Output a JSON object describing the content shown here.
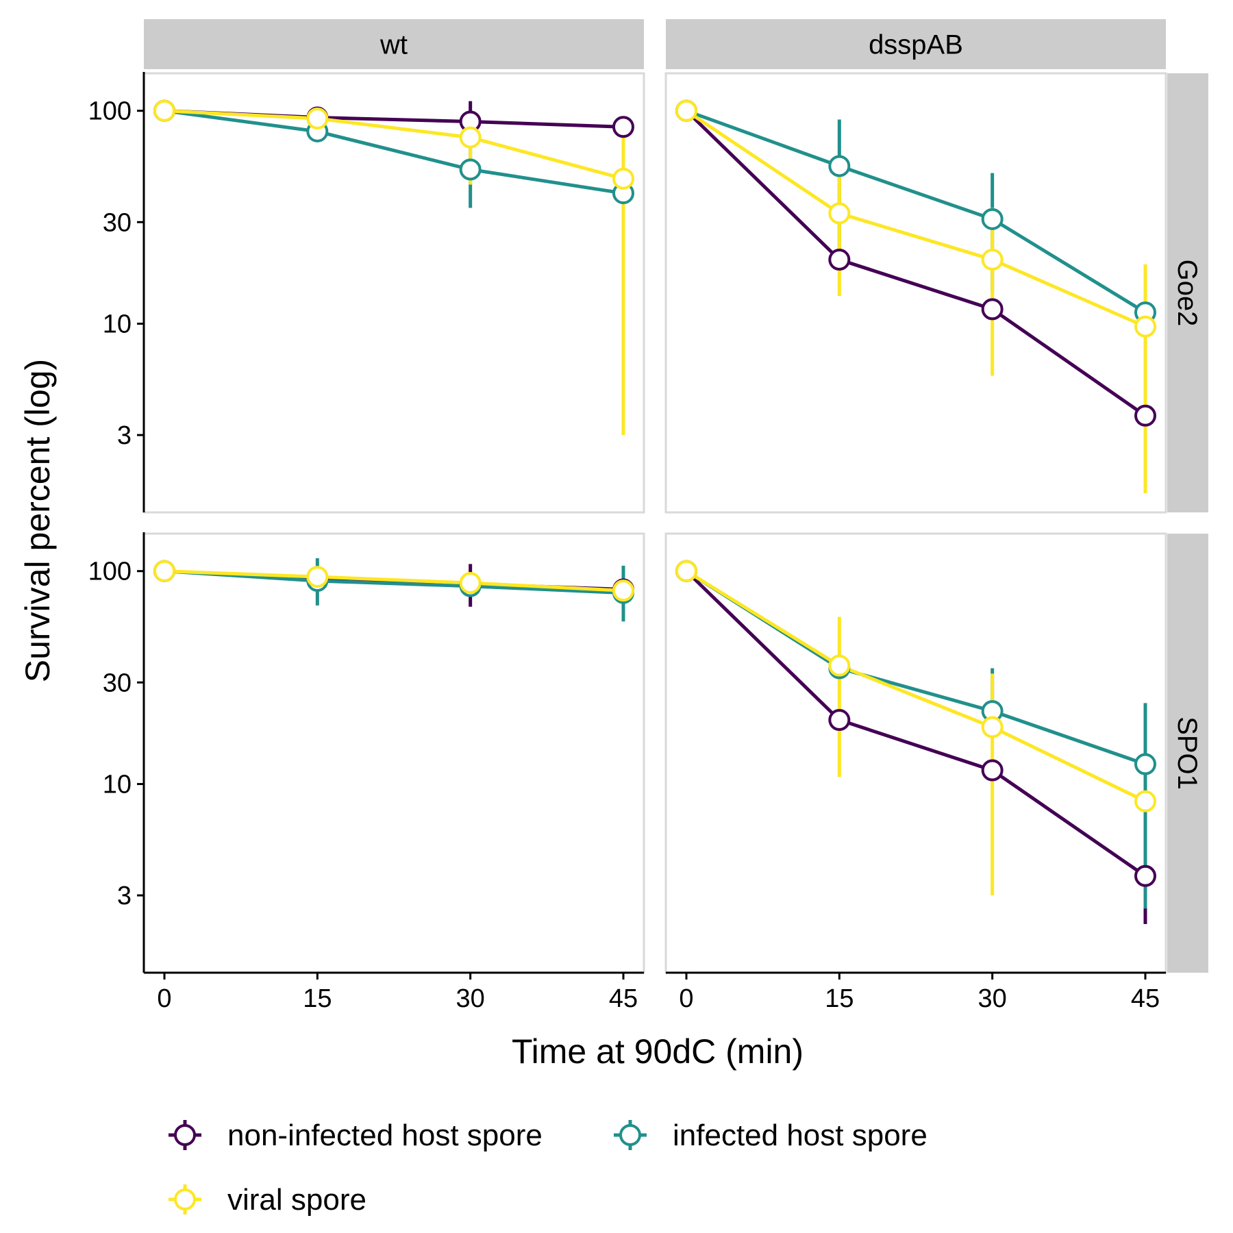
{
  "chart_data": {
    "type": "line",
    "xlabel": "Time at 90dC (min)",
    "ylabel": "Survival percent (log)",
    "x": [
      0,
      15,
      30,
      45
    ],
    "x_ticks": [
      "0",
      "15",
      "30",
      "45"
    ],
    "y_scale": "log",
    "y_ticks": [
      3,
      10,
      30,
      100
    ],
    "y_tick_labels": [
      "3",
      "10",
      "30",
      "100"
    ],
    "ylim": [
      1.3,
      150
    ],
    "grid": false,
    "legend_position": "bottom",
    "column_strips": [
      "wt",
      "dsspAB"
    ],
    "row_strips": [
      "Goe2",
      "SPO1"
    ],
    "series_styles": [
      {
        "name": "non-infected host spore",
        "color": "#440154"
      },
      {
        "name": "infected host spore",
        "color": "#21908C"
      },
      {
        "name": "viral spore",
        "color": "#FDE725"
      }
    ],
    "panels": [
      {
        "column": "wt",
        "row": "Goe2",
        "series": [
          {
            "name": "non-infected host spore",
            "values": [
              100,
              93,
              89,
              84
            ],
            "err_low": [
              null,
              null,
              82,
              null
            ],
            "err_high": [
              null,
              null,
              111,
              null
            ]
          },
          {
            "name": "infected host spore",
            "values": [
              100,
              80,
              53,
              41
            ],
            "err_low": [
              null,
              null,
              35,
              null
            ],
            "err_high": [
              null,
              null,
              72,
              null
            ]
          },
          {
            "name": "viral spore",
            "values": [
              100,
              92,
              75,
              48
            ],
            "err_low": [
              null,
              null,
              45,
              3
            ],
            "err_high": [
              null,
              null,
              95,
              83
            ]
          }
        ]
      },
      {
        "column": "dsspAB",
        "row": "Goe2",
        "series": [
          {
            "name": "non-infected host spore",
            "values": [
              100,
              20,
              11.7,
              3.7
            ],
            "err_low": [
              null,
              null,
              null,
              null
            ],
            "err_high": [
              null,
              null,
              null,
              null
            ]
          },
          {
            "name": "infected host spore",
            "values": [
              100,
              55,
              31,
              11.3
            ],
            "err_low": [
              null,
              22,
              14,
              null
            ],
            "err_high": [
              null,
              91,
              51,
              null
            ]
          },
          {
            "name": "viral spore",
            "values": [
              100,
              33,
              20,
              9.7
            ],
            "err_low": [
              null,
              13.5,
              5.7,
              1.6
            ],
            "err_high": [
              null,
              55,
              35,
              19
            ]
          }
        ]
      },
      {
        "column": "wt",
        "row": "SPO1",
        "series": [
          {
            "name": "non-infected host spore",
            "values": [
              100,
              92,
              87,
              82
            ],
            "err_low": [
              null,
              null,
              68,
              null
            ],
            "err_high": [
              null,
              null,
              108,
              null
            ]
          },
          {
            "name": "infected host spore",
            "values": [
              100,
              90,
              85,
              79
            ],
            "err_low": [
              null,
              69,
              null,
              58
            ],
            "err_high": [
              null,
              115,
              null,
              106
            ]
          },
          {
            "name": "viral spore",
            "values": [
              100,
              94,
              88,
              81
            ],
            "err_low": [
              null,
              null,
              null,
              null
            ],
            "err_high": [
              null,
              null,
              null,
              null
            ]
          }
        ]
      },
      {
        "column": "dsspAB",
        "row": "SPO1",
        "series": [
          {
            "name": "non-infected host spore",
            "values": [
              100,
              20,
              11.6,
              3.7
            ],
            "err_low": [
              null,
              null,
              null,
              2.2
            ],
            "err_high": [
              null,
              null,
              null,
              null
            ]
          },
          {
            "name": "infected host spore",
            "values": [
              100,
              35,
              22,
              12.4
            ],
            "err_low": [
              null,
              null,
              null,
              2.6
            ],
            "err_high": [
              null,
              null,
              35,
              24
            ]
          },
          {
            "name": "viral spore",
            "values": [
              100,
              36,
              18.5,
              8.3
            ],
            "err_low": [
              null,
              10.8,
              3,
              null
            ],
            "err_high": [
              null,
              61,
              33,
              null
            ]
          }
        ]
      }
    ]
  }
}
